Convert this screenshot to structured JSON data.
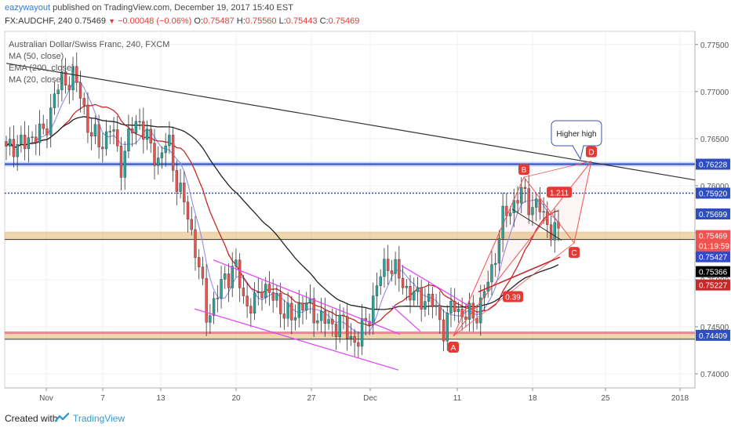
{
  "header": {
    "author": "eazywayout",
    "published_text": " published on TradingView.com, December 19, 2017 15:40 EST",
    "symbol": "FX:AUDCHF, 240",
    "last": "0.75469",
    "change": "−0.00048 (−0.06%)",
    "o_label": "O:",
    "o_value": "0.75487",
    "h_label": "H:",
    "h_value": "0.75560",
    "l_label": "L:",
    "l_value": "0.75443",
    "c_label": "C:",
    "c_value": "0.75469"
  },
  "legend": {
    "title": "Australian Dollar/Swiss Franc, 240, FXCM",
    "ma50": "MA (50, close)",
    "ema200": "EMA (200, close)",
    "ma20": "MA (20, close)"
  },
  "footer": {
    "created_with": "Created with",
    "brand": "TradingView"
  },
  "colors": {
    "up": "#26a69a",
    "down": "#ef5350",
    "red": "#e53935",
    "ma50": "#7b1fa2",
    "ma20": "#8e8ef0",
    "ema200": "#222222",
    "blue_level": "#2f4ebd",
    "orange_band": "#e0b46c",
    "pink": "#e040fb"
  },
  "chart_data": {
    "type": "candlestick",
    "instrument": "FX:AUDCHF",
    "timeframe": "240",
    "y_axis": {
      "range": [
        0.7385,
        0.7764
      ],
      "ticks": [
        0.775,
        0.77,
        0.765,
        0.76,
        0.755,
        0.75,
        0.745,
        0.74
      ]
    },
    "x_axis": {
      "ticks": [
        "Nov",
        "7",
        "13",
        "20",
        "27",
        "Dec",
        "11",
        "18",
        "25",
        "2018"
      ]
    },
    "ohlc_anchors": [
      {
        "close": 0.7635
      },
      {
        "close": 0.7648
      },
      {
        "close": 0.7641
      },
      {
        "close": 0.7659
      },
      {
        "close": 0.7651
      },
      {
        "close": 0.7698
      },
      {
        "close": 0.771
      },
      {
        "close": 0.7718
      },
      {
        "close": 0.7688
      },
      {
        "close": 0.7652
      },
      {
        "close": 0.7644
      },
      {
        "close": 0.7664
      },
      {
        "close": 0.7622
      },
      {
        "close": 0.7655
      },
      {
        "close": 0.7672
      },
      {
        "close": 0.7641
      },
      {
        "close": 0.7628
      },
      {
        "close": 0.7648
      },
      {
        "close": 0.7601
      },
      {
        "close": 0.757
      },
      {
        "close": 0.7528
      },
      {
        "close": 0.7462
      },
      {
        "close": 0.7479
      },
      {
        "close": 0.7503
      },
      {
        "close": 0.7515
      },
      {
        "close": 0.7478
      },
      {
        "close": 0.747
      },
      {
        "close": 0.7498
      },
      {
        "close": 0.7478
      },
      {
        "close": 0.7472
      },
      {
        "close": 0.7455
      },
      {
        "close": 0.7479
      },
      {
        "close": 0.7465
      },
      {
        "close": 0.7462
      },
      {
        "close": 0.7449
      },
      {
        "close": 0.7458
      },
      {
        "close": 0.744
      },
      {
        "close": 0.7435
      },
      {
        "close": 0.7461
      },
      {
        "close": 0.7494
      },
      {
        "close": 0.7522
      },
      {
        "close": 0.7505
      },
      {
        "close": 0.7492
      },
      {
        "close": 0.7479
      },
      {
        "close": 0.7482
      },
      {
        "close": 0.747
      },
      {
        "close": 0.7448
      },
      {
        "close": 0.7475
      },
      {
        "close": 0.7462
      },
      {
        "close": 0.746
      },
      {
        "close": 0.7478
      },
      {
        "close": 0.751
      },
      {
        "close": 0.756
      },
      {
        "close": 0.7578
      },
      {
        "close": 0.7592
      },
      {
        "close": 0.7582
      },
      {
        "close": 0.7575
      },
      {
        "close": 0.7558
      },
      {
        "close": 0.7546
      }
    ],
    "levels": [
      {
        "price": 0.7592,
        "label": "0.75920",
        "style": "dotted",
        "color": "#2f4ebd"
      },
      {
        "price": 0.76228,
        "label": "0.76228",
        "style": "solid",
        "color": "#2f4ebd"
      },
      {
        "price": 0.75469,
        "label": "0.75469",
        "style": "band",
        "color": "#e0b46c"
      },
      {
        "price": 0.74409,
        "label": "0.74409",
        "style": "band",
        "color": "#e0b46c"
      }
    ],
    "price_tags": [
      {
        "price": 0.76228,
        "label": "0.76228",
        "color": "#2f4ebd"
      },
      {
        "price": 0.7592,
        "label": "0.75920",
        "color": "#2f4ebd"
      },
      {
        "price": 0.75699,
        "label": "0.75699",
        "color": "#2f4ebd"
      },
      {
        "price": 0.75469,
        "label": "0.75469",
        "color": "#ef5350"
      },
      {
        "price": 0.75427,
        "label": "0.75427",
        "color": "#3347c9"
      },
      {
        "price": 0.75366,
        "label": "0.75366",
        "color": "#000000"
      },
      {
        "price": 0.75227,
        "label": "0.75227",
        "color": "#c62828"
      },
      {
        "price": 0.74409,
        "label": "0.74409",
        "color": "#2f4ebd"
      }
    ],
    "countdown": "01:19:59",
    "annotations": {
      "points": [
        "A",
        "B",
        "C",
        "D"
      ],
      "ratios": [
        "1.211",
        "0.39"
      ],
      "callout": "Higher high"
    }
  }
}
